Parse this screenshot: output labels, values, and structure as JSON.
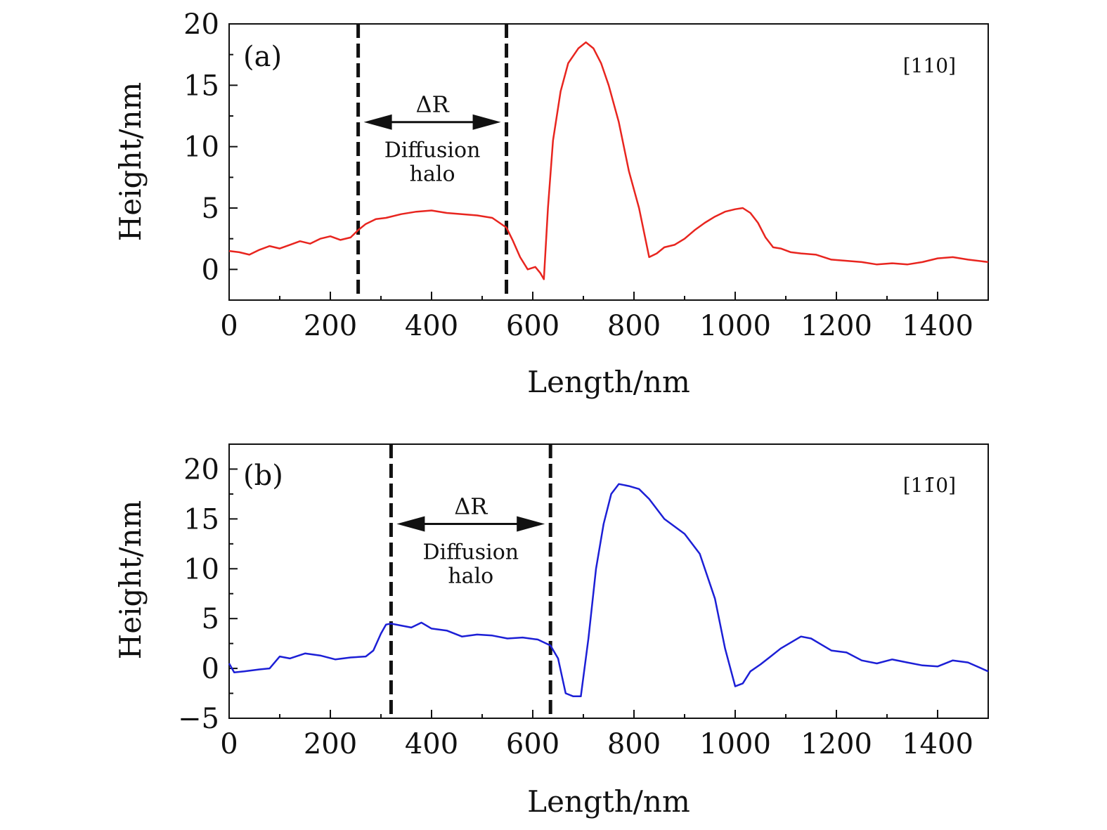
{
  "chart_data": [
    {
      "type": "line",
      "panel_label": "(a)",
      "direction_label": "[110]",
      "xlabel": "Length/nm",
      "ylabel": "Height/nm",
      "xlim": [
        0,
        1500
      ],
      "ylim": [
        -2.5,
        20
      ],
      "xticks": [
        0,
        200,
        400,
        600,
        800,
        1000,
        1200,
        1400
      ],
      "yticks": [
        0,
        5,
        10,
        15,
        20
      ],
      "markers": [
        255,
        548
      ],
      "annotation": {
        "delta": "ΔR",
        "line1": "Diffusion",
        "line2": "halo",
        "y": 12
      },
      "series": [
        {
          "name": "profile-110",
          "color": "#e8251f",
          "x": [
            0,
            20,
            40,
            60,
            80,
            100,
            120,
            140,
            160,
            180,
            200,
            220,
            240,
            255,
            270,
            290,
            310,
            340,
            370,
            400,
            430,
            460,
            490,
            520,
            548,
            560,
            575,
            590,
            605,
            615,
            622,
            630,
            640,
            655,
            670,
            690,
            705,
            720,
            735,
            750,
            770,
            790,
            810,
            830,
            845,
            860,
            880,
            900,
            920,
            940,
            960,
            980,
            1000,
            1015,
            1030,
            1045,
            1060,
            1075,
            1090,
            1110,
            1130,
            1160,
            1190,
            1220,
            1250,
            1280,
            1310,
            1340,
            1370,
            1400,
            1430,
            1460,
            1500
          ],
          "y": [
            1.5,
            1.4,
            1.2,
            1.6,
            1.9,
            1.7,
            2.0,
            2.3,
            2.1,
            2.5,
            2.7,
            2.4,
            2.6,
            3.2,
            3.7,
            4.1,
            4.2,
            4.5,
            4.7,
            4.8,
            4.6,
            4.5,
            4.4,
            4.2,
            3.4,
            2.4,
            1.0,
            0.0,
            0.2,
            -0.3,
            -0.8,
            5.0,
            10.5,
            14.5,
            16.8,
            18.0,
            18.5,
            18.0,
            16.8,
            15.0,
            12.0,
            8.0,
            5.0,
            1.0,
            1.3,
            1.8,
            2.0,
            2.5,
            3.2,
            3.8,
            4.3,
            4.7,
            4.9,
            5.0,
            4.6,
            3.8,
            2.6,
            1.8,
            1.7,
            1.4,
            1.3,
            1.2,
            0.8,
            0.7,
            0.6,
            0.4,
            0.5,
            0.4,
            0.6,
            0.9,
            1.0,
            0.8,
            0.6
          ]
        }
      ]
    },
    {
      "type": "line",
      "panel_label": "(b)",
      "direction_label": "[11̄0]",
      "xlabel": "Length/nm",
      "ylabel": "Height/nm",
      "xlim": [
        0,
        1500
      ],
      "ylim": [
        -5,
        22.5
      ],
      "xticks": [
        0,
        200,
        400,
        600,
        800,
        1000,
        1200,
        1400
      ],
      "yticks": [
        -5,
        0,
        5,
        10,
        15,
        20
      ],
      "markers": [
        320,
        635
      ],
      "annotation": {
        "delta": "ΔR",
        "line1": "Diffusion",
        "line2": "halo",
        "y": 14.5
      },
      "series": [
        {
          "name": "profile-1-10",
          "color": "#1c1fd6",
          "x": [
            0,
            10,
            30,
            60,
            80,
            100,
            120,
            150,
            180,
            210,
            240,
            270,
            285,
            300,
            310,
            320,
            340,
            360,
            380,
            400,
            430,
            460,
            490,
            520,
            550,
            580,
            610,
            635,
            650,
            665,
            680,
            695,
            710,
            725,
            740,
            755,
            770,
            790,
            810,
            830,
            860,
            900,
            930,
            960,
            980,
            1000,
            1015,
            1030,
            1050,
            1070,
            1090,
            1110,
            1130,
            1150,
            1170,
            1190,
            1220,
            1250,
            1280,
            1310,
            1340,
            1370,
            1400,
            1430,
            1460,
            1500
          ],
          "y": [
            0.5,
            -0.4,
            -0.3,
            -0.1,
            0.0,
            1.2,
            1.0,
            1.5,
            1.3,
            0.9,
            1.1,
            1.2,
            1.8,
            3.5,
            4.4,
            4.5,
            4.3,
            4.1,
            4.6,
            4.0,
            3.8,
            3.2,
            3.4,
            3.3,
            3.0,
            3.1,
            2.9,
            2.3,
            1.0,
            -2.5,
            -2.8,
            -2.8,
            3.0,
            10.0,
            14.5,
            17.5,
            18.5,
            18.3,
            18.0,
            17.0,
            15.0,
            13.5,
            11.5,
            7.0,
            2.0,
            -1.8,
            -1.5,
            -0.3,
            0.4,
            1.2,
            2.0,
            2.6,
            3.2,
            3.0,
            2.4,
            1.8,
            1.6,
            0.8,
            0.5,
            0.9,
            0.6,
            0.3,
            0.2,
            0.8,
            0.6,
            -0.3
          ]
        }
      ]
    }
  ]
}
